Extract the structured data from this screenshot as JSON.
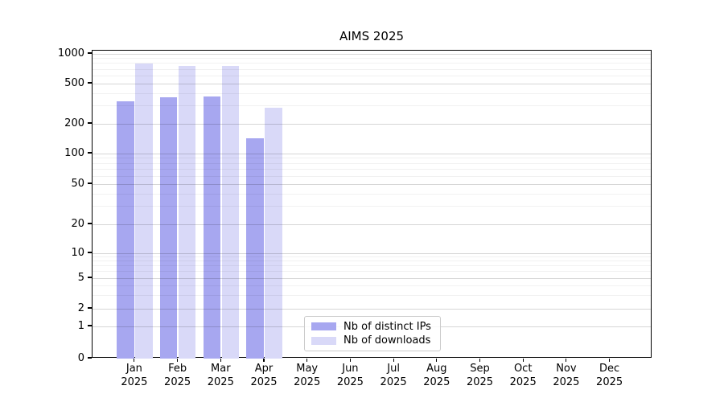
{
  "chart_data": {
    "type": "bar",
    "title": "AIMS 2025",
    "categories": [
      "Jan",
      "Feb",
      "Mar",
      "Apr",
      "May",
      "Jun",
      "Jul",
      "Aug",
      "Sep",
      "Oct",
      "Nov",
      "Dec"
    ],
    "x_tick_year": "2025",
    "y_ticks": [
      0,
      1,
      2,
      5,
      10,
      20,
      50,
      100,
      200,
      500,
      1000
    ],
    "y_minor_ticks": [
      3,
      4,
      6,
      7,
      8,
      9,
      30,
      40,
      60,
      70,
      80,
      90,
      300,
      400,
      600,
      700,
      800,
      900
    ],
    "ylim": [
      0,
      1000
    ],
    "yscale": "symlog",
    "grid": "major-and-minor",
    "legend_position": "lower-center",
    "series": [
      {
        "name": "Nb of distinct IPs",
        "color": "#a7a7f0",
        "values": [
          332,
          366,
          372,
          143,
          0,
          0,
          0,
          0,
          0,
          0,
          0,
          0
        ]
      },
      {
        "name": "Nb of downloads",
        "color": "#d9d9f8",
        "values": [
          800,
          755,
          760,
          288,
          0,
          0,
          0,
          0,
          0,
          0,
          0,
          0
        ]
      }
    ]
  }
}
